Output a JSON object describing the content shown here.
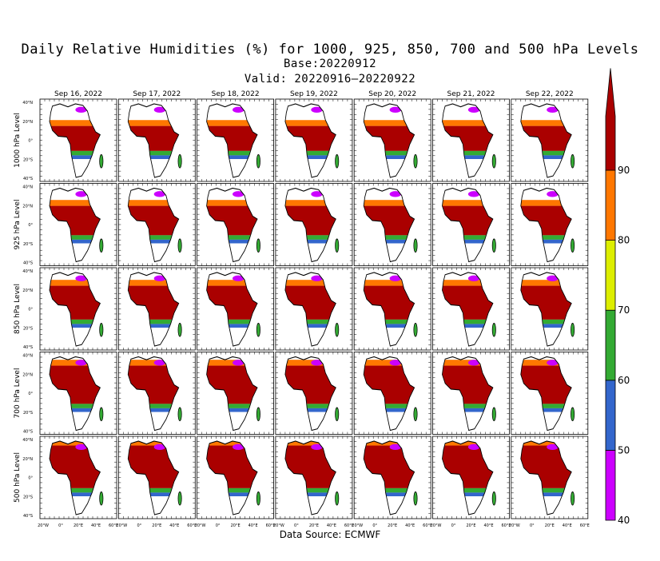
{
  "title": "Daily Relative Humidities (%) for 1000, 925, 850, 700 and 500 hPa Levels",
  "base": "Base:20220912",
  "valid": "Valid: 20220916–20220922",
  "source": "Data Source: ECMWF",
  "chart_data": {
    "type": "heatmap",
    "title": "Daily Relative Humidities (%) for 1000, 925, 850, 700 and 500 hPa Levels",
    "columns": [
      "Sep 16, 2022",
      "Sep 17, 2022",
      "Sep 18, 2022",
      "Sep 19, 2022",
      "Sep 20, 2022",
      "Sep 21, 2022",
      "Sep 22, 2022"
    ],
    "rows": [
      "1000 hPa Level",
      "925 hPa Level",
      "850 hPa Level",
      "700 hPa Level",
      "500 hPa Level"
    ],
    "lat_ticks": [
      "40°N",
      "20°N",
      "0°",
      "20°S",
      "40°S"
    ],
    "lon_ticks": [
      "20°W",
      "0°",
      "20°E",
      "40°E",
      "60°E"
    ],
    "lon_range": [
      -20,
      60
    ],
    "lat_range": [
      -40,
      40
    ],
    "colorbar": {
      "levels": [
        40,
        50,
        60,
        70,
        80,
        90
      ],
      "labels": [
        "40",
        "50",
        "60",
        "70",
        "80",
        "90"
      ],
      "colors": [
        "#cc00ff",
        "#3366cc",
        "#33aa33",
        "#ddee00",
        "#ff7700",
        "#aa0000"
      ],
      "extend": "max"
    }
  }
}
